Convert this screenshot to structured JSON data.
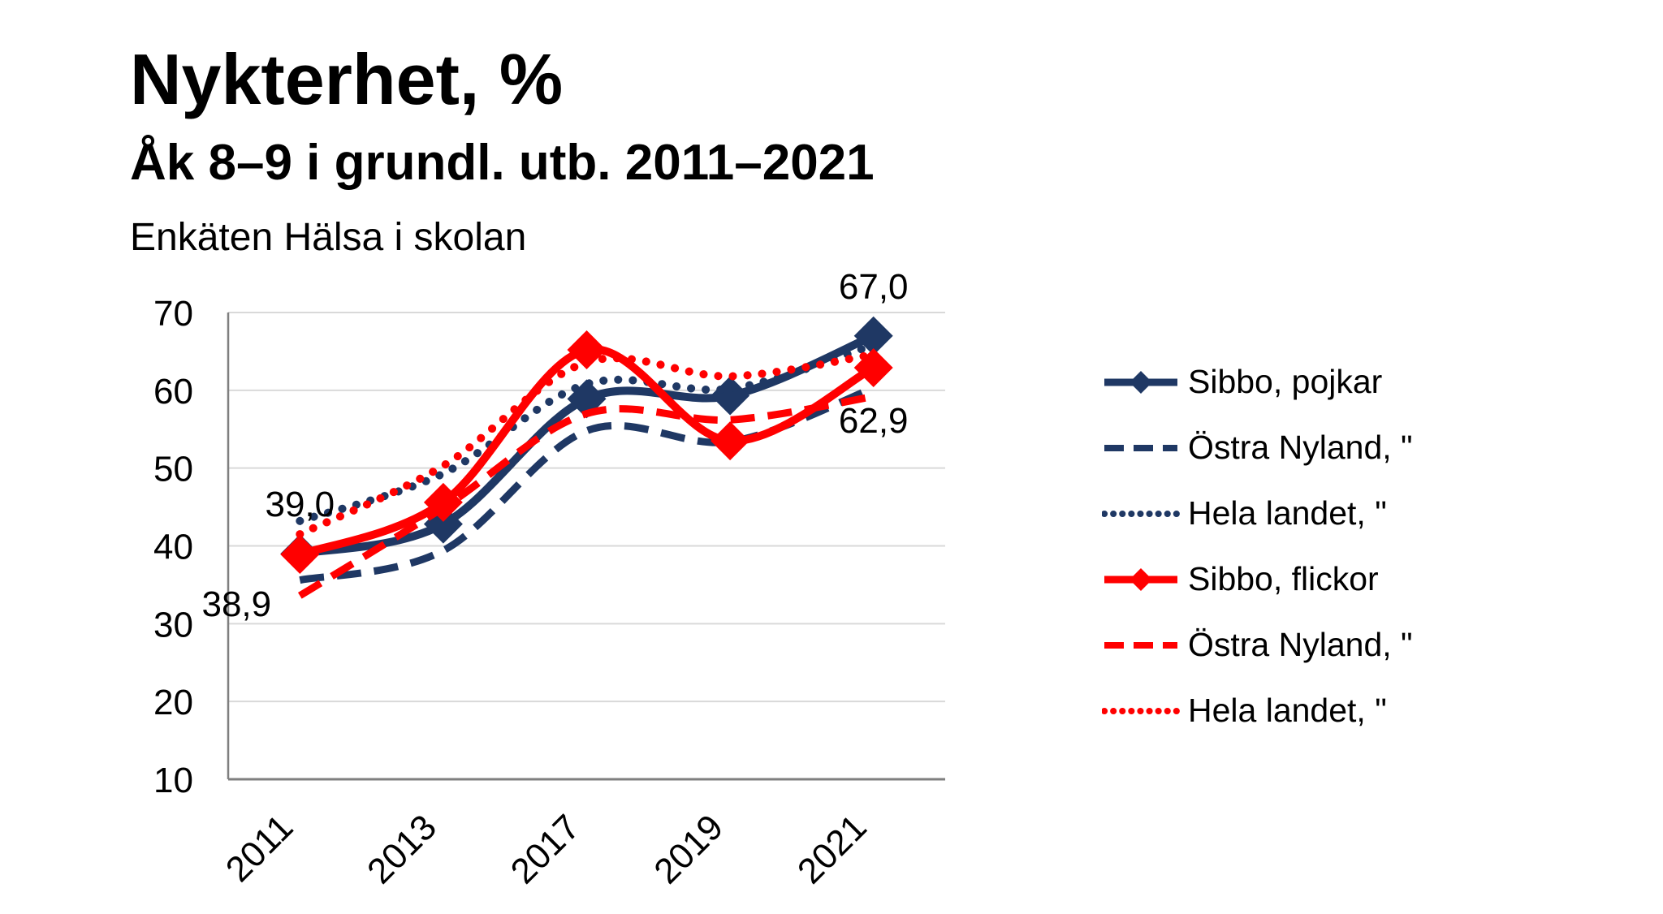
{
  "header": {
    "title": "Nykterhet, %",
    "subtitle": "Åk 8–9 i grundl. utb. 2011–2021",
    "survey": "Enkäten Hälsa i skolan"
  },
  "colors": {
    "navy": "#1f3864",
    "red": "#ff0000",
    "gridline": "#d9d9d9",
    "axis": "#7f7f7f",
    "text": "#000000",
    "background": "#ffffff"
  },
  "legend": {
    "position": "right",
    "items": [
      {
        "id": "sibbo-pojkar",
        "label": "Sibbo, pojkar",
        "color": "#1f3864",
        "style": "solid",
        "marker": "diamond"
      },
      {
        "id": "ostra-nyland-pojkar",
        "label": "Östra Nyland, \"",
        "color": "#1f3864",
        "style": "dashed",
        "marker": null
      },
      {
        "id": "hela-landet-pojkar",
        "label": "Hela landet, \"",
        "color": "#1f3864",
        "style": "dotted",
        "marker": null
      },
      {
        "id": "sibbo-flickor",
        "label": "Sibbo, flickor",
        "color": "#ff0000",
        "style": "solid",
        "marker": "diamond"
      },
      {
        "id": "ostra-nyland-flickor",
        "label": "Östra Nyland, \"",
        "color": "#ff0000",
        "style": "dashed",
        "marker": null
      },
      {
        "id": "hela-landet-flickor",
        "label": "Hela landet, \"",
        "color": "#ff0000",
        "style": "dotted",
        "marker": null
      }
    ]
  },
  "chart_data": {
    "type": "line",
    "title": "Nykterhet, %",
    "xlabel": "",
    "ylabel": "",
    "categories": [
      "2011",
      "2013",
      "2017",
      "2019",
      "2021"
    ],
    "ylim": [
      10,
      70
    ],
    "yticks": [
      10,
      20,
      30,
      40,
      50,
      60,
      70
    ],
    "grid": true,
    "legend_position": "right",
    "line_smoothing": true,
    "series": [
      {
        "id": "sibbo-pojkar",
        "name": "Sibbo, pojkar",
        "color": "#1f3864",
        "style": "solid",
        "marker": "diamond",
        "values": [
          39.0,
          42.8,
          58.9,
          59.3,
          67.0
        ]
      },
      {
        "id": "ostra-nyland-pojkar",
        "name": "Östra Nyland, \"",
        "color": "#1f3864",
        "style": "dashed",
        "marker": null,
        "values": [
          35.6,
          39.4,
          54.8,
          53.4,
          60.3
        ]
      },
      {
        "id": "hela-landet-pojkar",
        "name": "Hela landet, \"",
        "color": "#1f3864",
        "style": "dotted",
        "marker": null,
        "values": [
          43.2,
          49.3,
          60.8,
          60.2,
          65.8
        ]
      },
      {
        "id": "sibbo-flickor",
        "name": "Sibbo, flickor",
        "color": "#ff0000",
        "style": "solid",
        "marker": "diamond",
        "values": [
          38.9,
          45.6,
          65.2,
          53.5,
          62.9
        ]
      },
      {
        "id": "ostra-nyland-flickor",
        "name": "Östra Nyland, \"",
        "color": "#ff0000",
        "style": "dashed",
        "marker": null,
        "values": [
          33.6,
          44.9,
          57.0,
          56.2,
          59.2
        ]
      },
      {
        "id": "hela-landet-flickor",
        "name": "Hela landet, \"",
        "color": "#ff0000",
        "style": "dotted",
        "marker": null,
        "values": [
          41.5,
          50.3,
          63.6,
          61.8,
          64.6
        ]
      }
    ],
    "point_labels": [
      {
        "text": "39,0",
        "series": 0,
        "category": 0,
        "position": "above"
      },
      {
        "text": "38,9",
        "series": 3,
        "category": 0,
        "position": "below-left"
      },
      {
        "text": "67,0",
        "series": 0,
        "category": 4,
        "position": "above"
      },
      {
        "text": "62,9",
        "series": 3,
        "category": 4,
        "position": "below"
      }
    ]
  }
}
